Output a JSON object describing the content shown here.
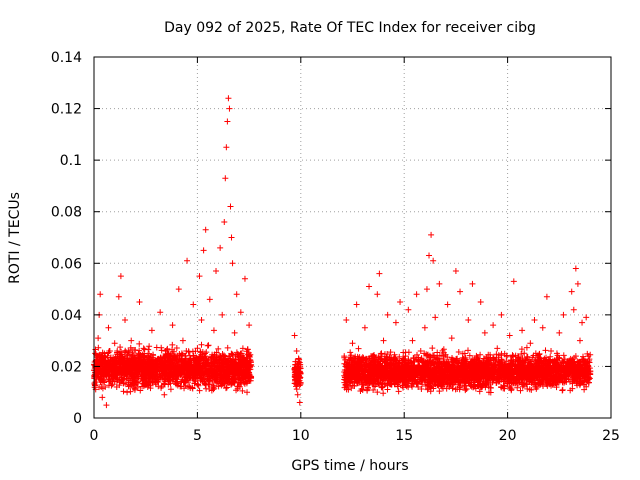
{
  "chart_data": {
    "type": "scatter",
    "title": "Day 092 of 2025, Rate Of TEC Index for receiver cibg",
    "xlabel": "GPS time / hours",
    "ylabel": "ROTI / TECUs",
    "xlim": [
      0,
      25
    ],
    "ylim": [
      0,
      0.14
    ],
    "xticks": [
      0,
      5,
      10,
      15,
      20,
      25
    ],
    "xtick_labels": [
      "0",
      "5",
      "10",
      "15",
      "20",
      "25"
    ],
    "yticks": [
      0,
      0.02,
      0.04,
      0.06,
      0.08,
      0.1,
      0.12,
      0.14
    ],
    "ytick_labels": [
      "0",
      "0.02",
      "0.04",
      "0.06",
      "0.08",
      "0.1",
      "0.12",
      "0.14"
    ],
    "grid": true,
    "marker": "+",
    "color": "#ff0000",
    "series": [
      {
        "name": "ROTI",
        "points": [
          [
            0.1,
            0.02
          ],
          [
            0.2,
            0.031
          ],
          [
            0.25,
            0.04
          ],
          [
            0.3,
            0.048
          ],
          [
            0.35,
            0.012
          ],
          [
            0.4,
            0.008
          ],
          [
            0.5,
            0.025
          ],
          [
            0.6,
            0.005
          ],
          [
            0.7,
            0.035
          ],
          [
            0.9,
            0.018
          ],
          [
            1.0,
            0.029
          ],
          [
            1.1,
            0.012
          ],
          [
            1.2,
            0.047
          ],
          [
            1.3,
            0.055
          ],
          [
            1.4,
            0.022
          ],
          [
            1.5,
            0.038
          ],
          [
            1.6,
            0.01
          ],
          [
            1.8,
            0.03
          ],
          [
            2.0,
            0.016
          ],
          [
            2.2,
            0.045
          ],
          [
            2.4,
            0.027
          ],
          [
            2.6,
            0.012
          ],
          [
            2.8,
            0.034
          ],
          [
            3.0,
            0.02
          ],
          [
            3.2,
            0.041
          ],
          [
            3.4,
            0.009
          ],
          [
            3.6,
            0.024
          ],
          [
            3.8,
            0.036
          ],
          [
            4.0,
            0.015
          ],
          [
            4.1,
            0.05
          ],
          [
            4.3,
            0.03
          ],
          [
            4.5,
            0.061
          ],
          [
            4.6,
            0.021
          ],
          [
            4.8,
            0.044
          ],
          [
            5.0,
            0.013
          ],
          [
            5.1,
            0.055
          ],
          [
            5.2,
            0.038
          ],
          [
            5.3,
            0.065
          ],
          [
            5.4,
            0.073
          ],
          [
            5.5,
            0.028
          ],
          [
            5.6,
            0.046
          ],
          [
            5.7,
            0.012
          ],
          [
            5.8,
            0.034
          ],
          [
            5.9,
            0.057
          ],
          [
            6.0,
            0.022
          ],
          [
            6.1,
            0.066
          ],
          [
            6.2,
            0.04
          ],
          [
            6.3,
            0.076
          ],
          [
            6.35,
            0.093
          ],
          [
            6.4,
            0.105
          ],
          [
            6.45,
            0.115
          ],
          [
            6.5,
            0.124
          ],
          [
            6.55,
            0.12
          ],
          [
            6.6,
            0.082
          ],
          [
            6.65,
            0.07
          ],
          [
            6.7,
            0.06
          ],
          [
            6.8,
            0.033
          ],
          [
            6.9,
            0.048
          ],
          [
            7.0,
            0.015
          ],
          [
            7.1,
            0.041
          ],
          [
            7.2,
            0.027
          ],
          [
            7.3,
            0.054
          ],
          [
            7.4,
            0.01
          ],
          [
            7.5,
            0.036
          ],
          [
            9.7,
            0.032
          ],
          [
            9.75,
            0.018
          ],
          [
            9.8,
            0.026
          ],
          [
            9.85,
            0.009
          ],
          [
            9.9,
            0.022
          ],
          [
            9.95,
            0.006
          ],
          [
            12.1,
            0.024
          ],
          [
            12.2,
            0.038
          ],
          [
            12.3,
            0.011
          ],
          [
            12.5,
            0.029
          ],
          [
            12.7,
            0.044
          ],
          [
            12.9,
            0.016
          ],
          [
            13.1,
            0.035
          ],
          [
            13.3,
            0.051
          ],
          [
            13.5,
            0.022
          ],
          [
            13.7,
            0.048
          ],
          [
            13.8,
            0.056
          ],
          [
            14.0,
            0.03
          ],
          [
            14.2,
            0.04
          ],
          [
            14.4,
            0.013
          ],
          [
            14.6,
            0.037
          ],
          [
            14.8,
            0.045
          ],
          [
            15.0,
            0.02
          ],
          [
            15.2,
            0.042
          ],
          [
            15.4,
            0.03
          ],
          [
            15.6,
            0.048
          ],
          [
            15.8,
            0.026
          ],
          [
            16.0,
            0.035
          ],
          [
            16.1,
            0.05
          ],
          [
            16.2,
            0.063
          ],
          [
            16.3,
            0.071
          ],
          [
            16.4,
            0.061
          ],
          [
            16.5,
            0.039
          ],
          [
            16.7,
            0.052
          ],
          [
            16.9,
            0.022
          ],
          [
            17.1,
            0.044
          ],
          [
            17.3,
            0.031
          ],
          [
            17.5,
            0.057
          ],
          [
            17.7,
            0.049
          ],
          [
            17.9,
            0.015
          ],
          [
            18.1,
            0.038
          ],
          [
            18.3,
            0.052
          ],
          [
            18.5,
            0.021
          ],
          [
            18.7,
            0.045
          ],
          [
            18.9,
            0.033
          ],
          [
            19.1,
            0.01
          ],
          [
            19.3,
            0.036
          ],
          [
            19.5,
            0.027
          ],
          [
            19.7,
            0.04
          ],
          [
            19.9,
            0.018
          ],
          [
            20.1,
            0.032
          ],
          [
            20.3,
            0.053
          ],
          [
            20.5,
            0.024
          ],
          [
            20.7,
            0.034
          ],
          [
            20.9,
            0.013
          ],
          [
            21.1,
            0.029
          ],
          [
            21.3,
            0.038
          ],
          [
            21.5,
            0.02
          ],
          [
            21.7,
            0.035
          ],
          [
            21.9,
            0.047
          ],
          [
            22.1,
            0.026
          ],
          [
            22.3,
            0.015
          ],
          [
            22.5,
            0.033
          ],
          [
            22.7,
            0.04
          ],
          [
            22.9,
            0.022
          ],
          [
            23.1,
            0.049
          ],
          [
            23.2,
            0.042
          ],
          [
            23.3,
            0.058
          ],
          [
            23.4,
            0.052
          ],
          [
            23.5,
            0.03
          ],
          [
            23.6,
            0.037
          ],
          [
            23.7,
            0.011
          ],
          [
            23.8,
            0.039
          ],
          [
            23.9,
            0.024
          ]
        ],
        "dense_bands": [
          {
            "x_range": [
              0.0,
              7.6
            ],
            "y_mean": 0.019,
            "y_spread": 0.012
          },
          {
            "x_range": [
              9.7,
              10.0
            ],
            "y_mean": 0.017,
            "y_spread": 0.008
          },
          {
            "x_range": [
              12.1,
              24.0
            ],
            "y_mean": 0.018,
            "y_spread": 0.011
          }
        ]
      }
    ]
  }
}
